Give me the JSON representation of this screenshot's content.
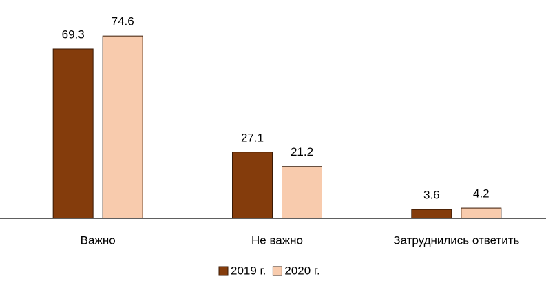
{
  "chart_data": {
    "type": "bar",
    "categories": [
      "Важно",
      "Не важно",
      "Затруднились ответить"
    ],
    "series": [
      {
        "name": "2019 г.",
        "color": "#843c0c",
        "values": [
          69.3,
          27.1,
          3.6
        ]
      },
      {
        "name": "2020 г.",
        "color": "#f8cbad",
        "values": [
          74.6,
          21.2,
          4.2
        ]
      }
    ],
    "ylim": [
      0,
      80
    ],
    "legend": "bottom"
  }
}
